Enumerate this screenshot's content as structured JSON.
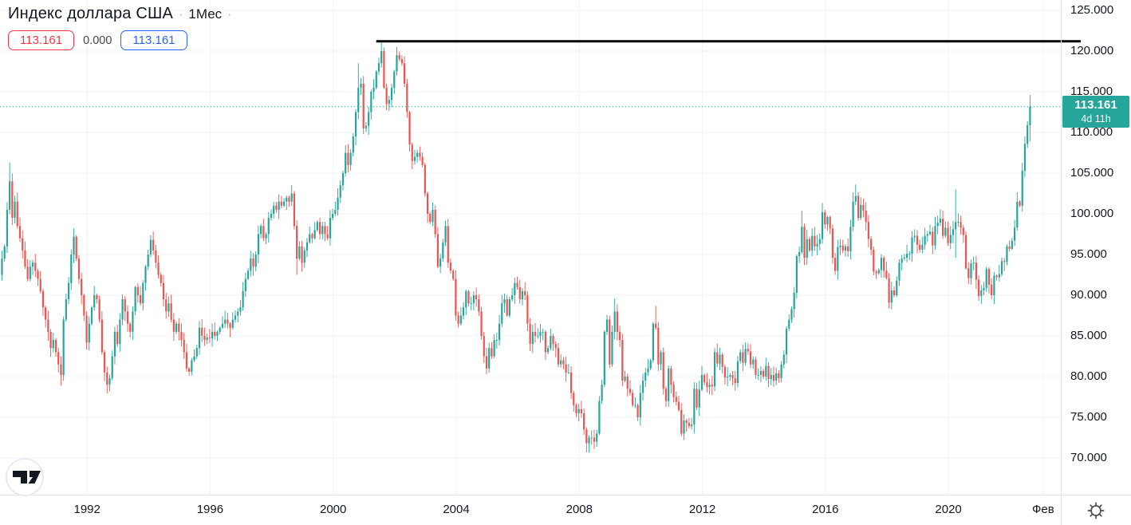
{
  "header": {
    "title": "Индекс доллара США",
    "dot1": "·",
    "interval": "1Мес",
    "dot2": "·",
    "sell_price": "113.161",
    "change": "0.000",
    "buy_price": "113.161"
  },
  "last_price_label": {
    "price": "113.161",
    "countdown": "4d 11h"
  },
  "price_scale": {
    "labels": [
      {
        "text": "125.000",
        "value": 125
      },
      {
        "text": "120.000",
        "value": 120
      },
      {
        "text": "115.000",
        "value": 115
      },
      {
        "text": "110.000",
        "value": 110
      },
      {
        "text": "105.000",
        "value": 105
      },
      {
        "text": "100.000",
        "value": 100
      },
      {
        "text": "95.000",
        "value": 95
      },
      {
        "text": "90.000",
        "value": 90
      },
      {
        "text": "85.000",
        "value": 85
      },
      {
        "text": "80.000",
        "value": 80
      },
      {
        "text": "75.000",
        "value": 75
      },
      {
        "text": "70.000",
        "value": 70
      }
    ]
  },
  "time_scale": {
    "labels": [
      {
        "text": "1992",
        "t": 1992
      },
      {
        "text": "1996",
        "t": 1996
      },
      {
        "text": "2000",
        "t": 2000
      },
      {
        "text": "2004",
        "t": 2004
      },
      {
        "text": "2008",
        "t": 2008
      },
      {
        "text": "2012",
        "t": 2012
      },
      {
        "text": "2016",
        "t": 2016
      },
      {
        "text": "2020",
        "t": 2020
      },
      {
        "text": "Фев",
        "t": 2023.08
      }
    ]
  },
  "colors": {
    "up": "#26a69a",
    "down": "#ef5350",
    "grid": "#f0f3fa",
    "axis_text": "#131722",
    "separator": "#e0e3eb",
    "badge_bg": "#26a69a",
    "sell": "#f23645",
    "buy": "#2962ff",
    "trendline": "#000000"
  },
  "chart_data": {
    "type": "candlestick",
    "title": "Индекс доллара США",
    "interval": "1M",
    "start_month": "1989-03",
    "months_per_candle": 1,
    "last_price": 113.161,
    "ylim": [
      65.9,
      126.3
    ],
    "x_range_years": [
      1989.17,
      2023.65
    ],
    "first_open": 92.5,
    "closes": [
      94.5,
      96.0,
      100.5,
      104.0,
      99.5,
      101.5,
      98.5,
      97.0,
      95.5,
      93.5,
      92.0,
      93.5,
      94.0,
      93.0,
      92.0,
      90.5,
      88.5,
      87.0,
      85.5,
      83.5,
      84.5,
      83.0,
      81.5,
      80.2,
      87.0,
      89.5,
      91.5,
      95.0,
      97.2,
      94.5,
      92.0,
      90.0,
      87.5,
      84.2,
      86.5,
      88.5,
      90.0,
      89.5,
      87.0,
      83.0,
      80.5,
      79.0,
      79.8,
      82.5,
      85.5,
      84.0,
      87.0,
      89.5,
      88.0,
      86.5,
      85.5,
      88.0,
      91.0,
      90.0,
      89.0,
      91.5,
      93.5,
      95.0,
      96.8,
      95.5,
      94.0,
      92.5,
      91.5,
      89.5,
      88.0,
      89.0,
      87.0,
      85.5,
      86.5,
      85.5,
      84.5,
      83.0,
      81.0,
      80.6,
      82.0,
      82.5,
      83.5,
      86.0,
      85.0,
      84.5,
      84.8,
      84.7,
      85.5,
      85.0,
      85.5,
      86.0,
      86.5,
      87.0,
      86.5,
      86.0,
      87.0,
      87.5,
      88.0,
      88.5,
      90.5,
      92.0,
      93.0,
      94.5,
      93.5,
      95.0,
      97.5,
      98.5,
      97.0,
      97.5,
      99.5,
      100.0,
      101.0,
      100.5,
      101.5,
      101.0,
      101.5,
      102.0,
      101.5,
      102.5,
      98.5,
      94.5,
      96.0,
      94.0,
      95.5,
      96.5,
      97.5,
      97.0,
      98.0,
      99.0,
      97.5,
      98.5,
      97.5,
      97.0,
      99.5,
      100.0,
      100.5,
      102.0,
      103.5,
      105.0,
      107.5,
      106.0,
      107.5,
      109.5,
      112.5,
      115.5,
      116.0,
      110.5,
      110.8,
      112.5,
      115.0,
      115.5,
      117.5,
      118.5,
      120.0,
      115.5,
      113.5,
      114.0,
      115.5,
      117.5,
      119.5,
      119.0,
      118.5,
      116.0,
      112.5,
      108.5,
      106.5,
      107.0,
      107.5,
      107.0,
      106.0,
      102.5,
      100.0,
      99.0,
      100.5,
      97.5,
      93.5,
      94.5,
      96.5,
      98.5,
      94.0,
      93.0,
      92.0,
      87.5,
      86.5,
      87.5,
      88.5,
      90.5,
      89.0,
      89.0,
      90.0,
      89.5,
      88.0,
      85.0,
      82.5,
      81.0,
      83.5,
      82.5,
      84.5,
      84.5,
      86.5,
      89.0,
      89.5,
      87.5,
      89.5,
      90.0,
      91.5,
      91.0,
      89.5,
      90.5,
      90.0,
      86.5,
      84.0,
      85.5,
      85.0,
      85.0,
      85.5,
      85.5,
      83.0,
      83.5,
      85.0,
      84.0,
      83.5,
      81.5,
      82.0,
      81.5,
      80.5,
      80.5,
      78.0,
      76.5,
      75.5,
      76.0,
      75.5,
      73.5,
      71.8,
      72.5,
      72.5,
      72.0,
      73.0,
      77.0,
      79.0,
      85.5,
      87.0,
      81.5,
      85.5,
      88.0,
      85.5,
      84.5,
      79.5,
      80.0,
      78.5,
      78.0,
      76.5,
      76.5,
      75.0,
      78.0,
      79.5,
      80.5,
      81.0,
      82.0,
      86.5,
      86.0,
      81.5,
      83.0,
      78.5,
      77.0,
      81.0,
      79.0,
      77.5,
      76.9,
      75.9,
      73.0,
      74.6,
      74.3,
      73.9,
      74.1,
      78.5,
      76.2,
      78.4,
      80.2,
      79.3,
      78.7,
      79.0,
      78.8,
      83.0,
      81.6,
      82.7,
      81.2,
      79.9,
      80.0,
      80.2,
      79.8,
      79.2,
      81.9,
      83.0,
      81.7,
      83.4,
      83.1,
      81.5,
      82.1,
      80.2,
      80.2,
      80.7,
      80.0,
      81.3,
      79.7,
      80.2,
      79.5,
      80.4,
      79.8,
      81.5,
      82.7,
      85.9,
      87.0,
      88.3,
      90.3,
      94.8,
      95.3,
      98.4,
      94.6,
      96.9,
      95.5,
      97.3,
      96.0,
      96.3,
      96.9,
      100.2,
      98.7,
      99.6,
      98.2,
      94.6,
      93.0,
      95.9,
      96.1,
      95.5,
      96.0,
      95.4,
      98.4,
      101.5,
      102.2,
      99.5,
      101.1,
      100.4,
      99.0,
      96.9,
      95.6,
      92.9,
      92.7,
      93.1,
      94.6,
      93.0,
      92.1,
      89.1,
      90.6,
      90.0,
      91.8,
      94.0,
      94.5,
      94.6,
      95.1,
      95.1,
      97.1,
      97.3,
      96.2,
      95.6,
      96.2,
      97.3,
      97.5,
      97.8,
      96.1,
      98.5,
      98.9,
      99.4,
      97.3,
      98.3,
      96.4,
      97.4,
      98.1,
      99.0,
      99.0,
      98.3,
      97.4,
      93.3,
      92.1,
      93.9,
      94.0,
      91.9,
      89.9,
      90.6,
      90.9,
      93.2,
      91.3,
      90.0,
      92.4,
      92.2,
      92.6,
      94.2,
      94.1,
      96.0,
      95.7,
      96.7,
      98.3,
      101.5,
      101.0,
      105.3,
      108.6,
      110.9,
      113.161
    ],
    "wick_overrides": {
      "3": [
        106.3,
        null
      ],
      "23": [
        null,
        78.9
      ],
      "28": [
        98.2,
        null
      ],
      "42": [
        null,
        78.2
      ],
      "73": [
        null,
        80.1
      ],
      "115": [
        null,
        92.5
      ],
      "139": [
        118.5,
        null
      ],
      "148": [
        121.0,
        null
      ],
      "154": [
        120.5,
        null
      ],
      "228": [
        null,
        70.7
      ],
      "239": [
        89.6,
        null
      ],
      "255": [
        88.7,
        null
      ],
      "265": [
        null,
        72.7
      ],
      "312": [
        100.4,
        null
      ],
      "333": [
        103.6,
        null
      ],
      "347": [
        null,
        88.25
      ],
      "372": [
        103.0,
        94.6
      ],
      "401": [
        114.6,
        108.9
      ]
    },
    "trendline": {
      "price": 121.2,
      "time_start": 2001.4,
      "color": "#000000"
    },
    "current_price_line": {
      "price": 113.161,
      "style": "dotted"
    }
  }
}
